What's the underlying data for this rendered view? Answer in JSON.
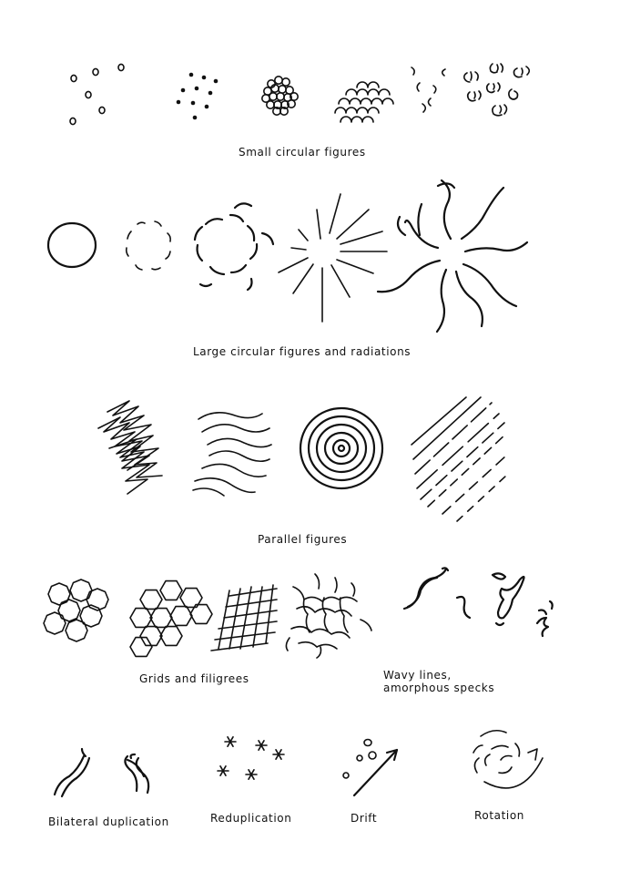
{
  "captions": {
    "small_circular": "Small circular figures",
    "large_circular": "Large circular figures and radiations",
    "parallel": "Parallel figures",
    "grids": "Grids and filigrees",
    "wavy_line1": "Wavy lines,",
    "wavy_line2": "amorphous specks",
    "bilateral": "Bilateral duplication",
    "reduplication": "Reduplication",
    "drift": "Drift",
    "rotation": "Rotation"
  },
  "colors": {
    "ink": "#111111",
    "paper": "#ffffff"
  }
}
